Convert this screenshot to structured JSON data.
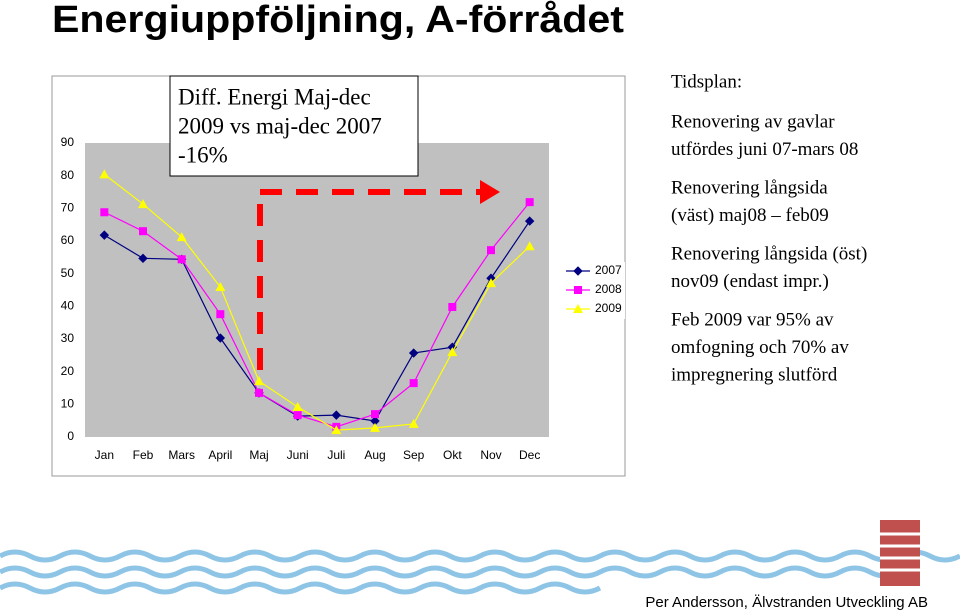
{
  "title": "Energiuppföljning, A-förrådet",
  "chart_data": {
    "type": "line",
    "categories": [
      "Jan",
      "Feb",
      "Mars",
      "April",
      "Maj",
      "Juni",
      "Juli",
      "Aug",
      "Sep",
      "Okt",
      "Nov",
      "Dec"
    ],
    "series": [
      {
        "name": "2007",
        "color": "#000080",
        "marker": "diamond",
        "values": [
          61.8,
          54.7,
          54.4,
          30.3,
          13.5,
          6.4,
          6.7,
          4.9,
          25.7,
          27.5,
          48.6,
          66.1
        ]
      },
      {
        "name": "2008",
        "color": "#ff00ff",
        "marker": "square",
        "values": [
          68.8,
          63.0,
          54.4,
          37.6,
          13.5,
          6.7,
          3.1,
          7.0,
          16.5,
          39.8,
          57.2,
          71.9
        ]
      },
      {
        "name": "2009",
        "color": "#ffff00",
        "marker": "triangle",
        "values": [
          80.4,
          71.3,
          61.2,
          45.9,
          17.1,
          9.2,
          2.1,
          2.8,
          4.0,
          26.0,
          47.1,
          58.4
        ]
      }
    ],
    "ylim": [
      0,
      90
    ],
    "yticks": [
      0,
      10,
      20,
      30,
      40,
      50,
      60,
      70,
      80,
      90
    ],
    "grid": false,
    "plot_background": "#c0c0c0",
    "legend": "right",
    "annotations": [
      "Diff. Energi Maj-dec",
      "2009 vs maj-dec 2007",
      "-16%"
    ]
  },
  "panel": {
    "heading": "Tidsplan:",
    "paragraphs": [
      [
        "Renovering av gavlar",
        "utfördes juni 07-mars 08"
      ],
      [
        "Renovering långsida",
        "(väst) maj08 – feb09"
      ],
      [
        "Renovering långsida (öst)",
        "nov09 (endast impr.)"
      ],
      [
        "Feb 2009 var 95% av",
        "omfogning och 70% av",
        "impregnering slutförd"
      ]
    ]
  },
  "footer": "Per Andersson, Älvstranden Utveckling AB"
}
